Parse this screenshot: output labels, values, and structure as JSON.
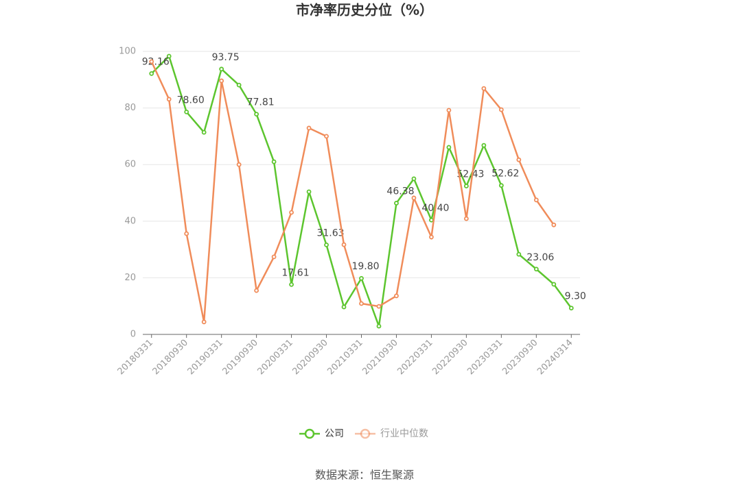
{
  "chart_data": {
    "type": "line",
    "title": "市净率历史分位（%）",
    "categories": [
      "20180331",
      null,
      "20180930",
      null,
      "20190331",
      null,
      "20190930",
      null,
      "20200331",
      null,
      "20200930",
      null,
      "20210331",
      null,
      "20210930",
      null,
      "20220331",
      null,
      "20220930",
      null,
      "20230331",
      null,
      "20230930",
      null,
      "20240314"
    ],
    "series": [
      {
        "name": "公司",
        "color": "#5cc52e",
        "values": [
          92.16,
          98.3,
          78.6,
          71.4,
          93.75,
          88.1,
          77.81,
          61.0,
          17.61,
          50.4,
          31.63,
          9.7,
          19.8,
          2.9,
          46.38,
          55.0,
          40.4,
          66.1,
          52.43,
          66.8,
          52.62,
          28.3,
          23.06,
          17.7,
          9.3
        ],
        "value_labels": [
          "92.16",
          null,
          "78.60",
          null,
          "93.75",
          null,
          "77.81",
          null,
          "17.61",
          null,
          "31.63",
          null,
          "19.80",
          null,
          "46.38",
          null,
          "40.40",
          null,
          "52.43",
          null,
          "52.62",
          null,
          "23.06",
          null,
          "9.30"
        ]
      },
      {
        "name": "行业中位数",
        "color": "#f08c5a",
        "values": [
          96.4,
          83.1,
          35.6,
          4.4,
          89.6,
          60.0,
          15.5,
          27.4,
          43.1,
          72.9,
          70.0,
          31.7,
          10.9,
          9.9,
          13.6,
          48.2,
          34.4,
          79.2,
          40.9,
          86.9,
          79.4,
          61.7,
          47.5,
          38.7,
          null
        ]
      }
    ],
    "ylim": [
      0,
      100
    ],
    "yticks": [
      0,
      20,
      40,
      60,
      80,
      100
    ],
    "grid": true,
    "legend": "bottom",
    "source": "数据来源：恒生聚源"
  }
}
